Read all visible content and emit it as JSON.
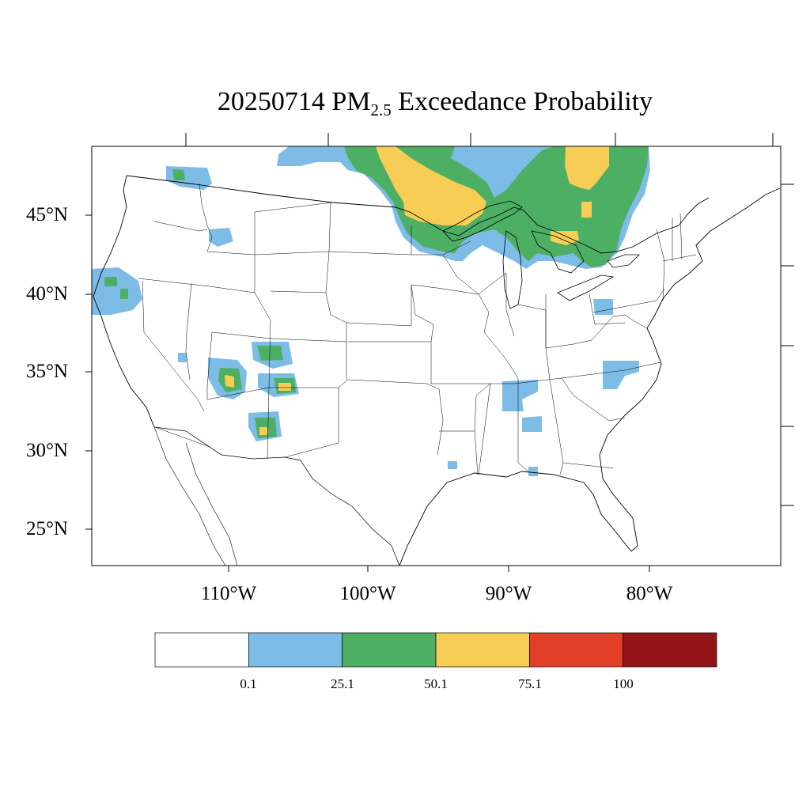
{
  "title": {
    "prefix": "20250714 PM",
    "subscript": "2.5",
    "suffix": " Exceedance Probability"
  },
  "axes": {
    "lat_labels": [
      "45°N",
      "40°N",
      "35°N",
      "30°N",
      "25°N"
    ],
    "lon_labels": [
      "110°W",
      "100°W",
      "90°W",
      "80°W"
    ]
  },
  "colorbar": {
    "colors": [
      "#ffffff",
      "#7dbce6",
      "#4caf63",
      "#f8cd55",
      "#e23f28",
      "#941519"
    ],
    "labels": [
      "0.1",
      "25.1",
      "50.1",
      "75.1",
      "100"
    ]
  }
}
